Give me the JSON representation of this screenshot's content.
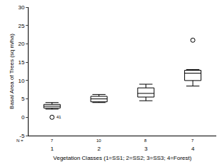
{
  "chart_data": {
    "type": "box",
    "x_label": "Vegetation Classes (1=SS1; 2=SS2; 3=SS3; 4=Forest)",
    "y_label": "Basal Area of Trees (sq m/ha)",
    "categories": [
      "1",
      "2",
      "3",
      "4"
    ],
    "lowerfence": [
      2.2,
      4,
      4.5,
      8.5
    ],
    "q1": [
      2.5,
      4.2,
      5.5,
      10
    ],
    "median": [
      3,
      5,
      6.5,
      12
    ],
    "q3": [
      3.5,
      5.7,
      8,
      12.8
    ],
    "upperfence": [
      4,
      6.2,
      9,
      13
    ],
    "outliers": [
      {
        "category": "1",
        "value": 0,
        "label": "41"
      },
      {
        "category": "4",
        "value": 21
      }
    ],
    "n_label": "N =",
    "n": [
      7,
      10,
      8,
      7
    ],
    "color": "#ffffff",
    "ylim": [
      -5,
      30
    ],
    "yticks": [
      -5,
      0,
      5,
      10,
      15,
      20,
      25,
      30
    ],
    "grid": false
  }
}
